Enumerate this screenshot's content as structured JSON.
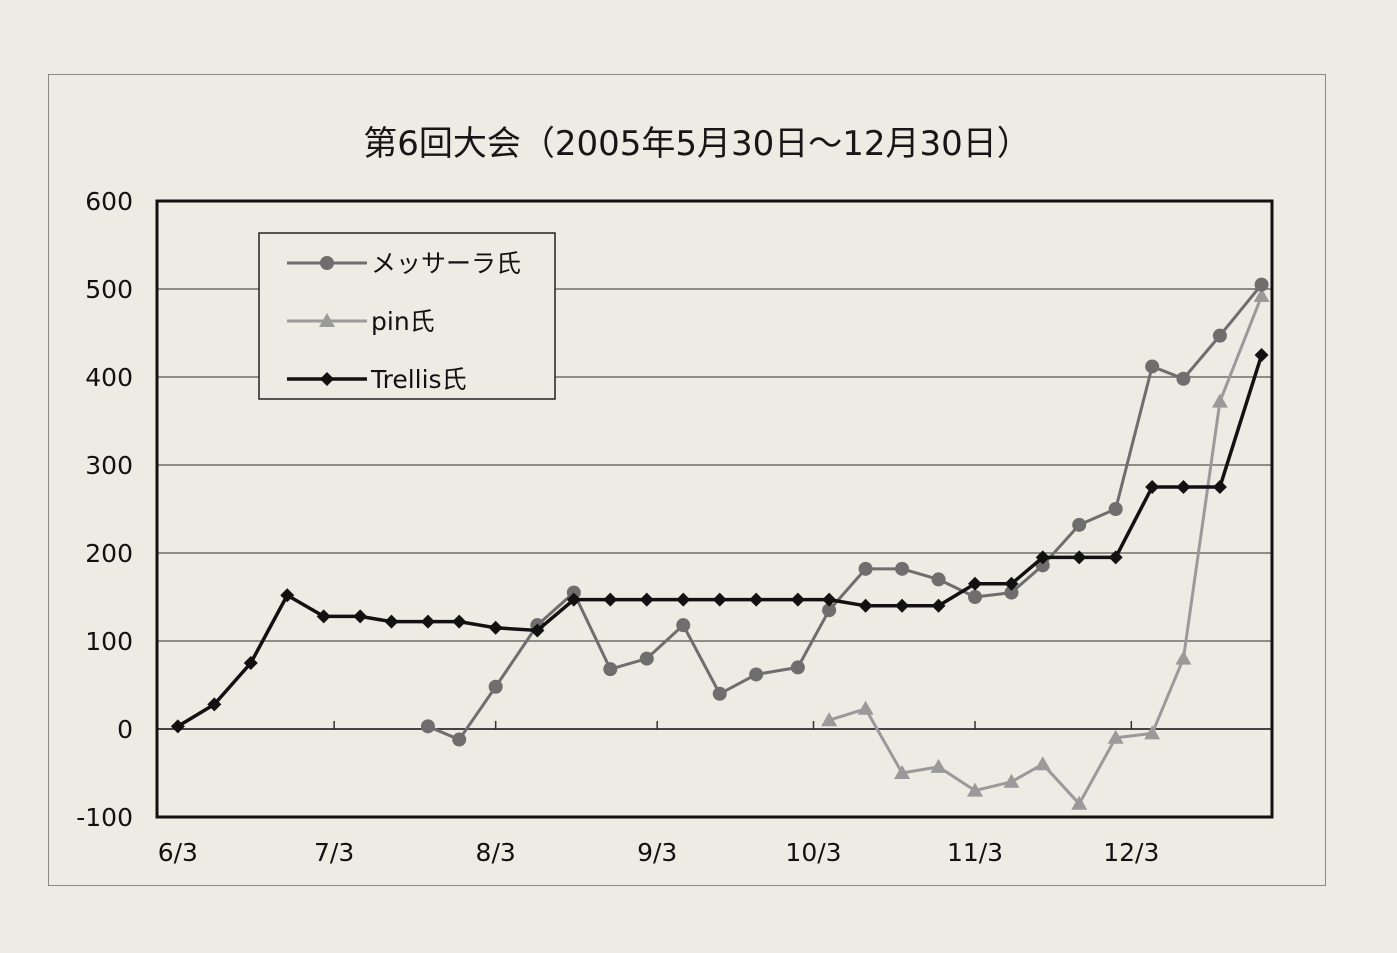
{
  "chart_data": {
    "type": "line",
    "title": "第6回大会（2005年5月30日～12月30日）",
    "xlabel": "",
    "ylabel": "",
    "ylim": [
      -100,
      600
    ],
    "yticks": [
      600,
      500,
      400,
      300,
      200,
      100,
      0,
      -100
    ],
    "x_range": [
      "2005-05-30",
      "2005-12-30"
    ],
    "x_ticks": [
      {
        "date": "2005-06-03",
        "label": "6/3"
      },
      {
        "date": "2005-07-03",
        "label": "7/3"
      },
      {
        "date": "2005-08-03",
        "label": "8/3"
      },
      {
        "date": "2005-09-03",
        "label": "9/3"
      },
      {
        "date": "2005-10-03",
        "label": "10/3"
      },
      {
        "date": "2005-11-03",
        "label": "11/3"
      },
      {
        "date": "2005-12-03",
        "label": "12/3"
      }
    ],
    "grid": {
      "horizontal": true,
      "vertical": false
    },
    "legend_position": "top-left",
    "series": [
      {
        "name": "メッサーラ氏",
        "marker": "circle",
        "color": "#6e6e6e",
        "points": [
          [
            "2005-07-21",
            3
          ],
          [
            "2005-07-27",
            -12
          ],
          [
            "2005-08-03",
            48
          ],
          [
            "2005-08-11",
            118
          ],
          [
            "2005-08-18",
            155
          ],
          [
            "2005-08-25",
            68
          ],
          [
            "2005-09-01",
            80
          ],
          [
            "2005-09-08",
            118
          ],
          [
            "2005-09-15",
            40
          ],
          [
            "2005-09-22",
            62
          ],
          [
            "2005-09-30",
            70
          ],
          [
            "2005-10-06",
            135
          ],
          [
            "2005-10-13",
            182
          ],
          [
            "2005-10-20",
            182
          ],
          [
            "2005-10-27",
            170
          ],
          [
            "2005-11-03",
            150
          ],
          [
            "2005-11-10",
            155
          ],
          [
            "2005-11-16",
            186
          ],
          [
            "2005-11-23",
            232
          ],
          [
            "2005-11-30",
            250
          ],
          [
            "2005-12-07",
            412
          ],
          [
            "2005-12-13",
            398
          ],
          [
            "2005-12-20",
            447
          ],
          [
            "2005-12-28",
            505
          ]
        ]
      },
      {
        "name": "pin氏",
        "marker": "triangle",
        "color": "#9a9a9a",
        "points": [
          [
            "2005-10-06",
            10
          ],
          [
            "2005-10-13",
            23
          ],
          [
            "2005-10-20",
            -50
          ],
          [
            "2005-10-27",
            -43
          ],
          [
            "2005-11-03",
            -70
          ],
          [
            "2005-11-10",
            -60
          ],
          [
            "2005-11-16",
            -40
          ],
          [
            "2005-11-23",
            -85
          ],
          [
            "2005-11-30",
            -10
          ],
          [
            "2005-12-07",
            -5
          ],
          [
            "2005-12-13",
            80
          ],
          [
            "2005-12-20",
            372
          ],
          [
            "2005-12-28",
            492
          ]
        ]
      },
      {
        "name": "Trellis氏",
        "marker": "diamond",
        "color": "#111111",
        "points": [
          [
            "2005-06-03",
            3
          ],
          [
            "2005-06-10",
            28
          ],
          [
            "2005-06-17",
            75
          ],
          [
            "2005-06-24",
            152
          ],
          [
            "2005-07-01",
            128
          ],
          [
            "2005-07-08",
            128
          ],
          [
            "2005-07-14",
            122
          ],
          [
            "2005-07-21",
            122
          ],
          [
            "2005-07-27",
            122
          ],
          [
            "2005-08-03",
            115
          ],
          [
            "2005-08-11",
            112
          ],
          [
            "2005-08-18",
            147
          ],
          [
            "2005-08-25",
            147
          ],
          [
            "2005-09-01",
            147
          ],
          [
            "2005-09-08",
            147
          ],
          [
            "2005-09-15",
            147
          ],
          [
            "2005-09-22",
            147
          ],
          [
            "2005-09-30",
            147
          ],
          [
            "2005-10-06",
            147
          ],
          [
            "2005-10-13",
            140
          ],
          [
            "2005-10-20",
            140
          ],
          [
            "2005-10-27",
            140
          ],
          [
            "2005-11-03",
            165
          ],
          [
            "2005-11-10",
            165
          ],
          [
            "2005-11-16",
            195
          ],
          [
            "2005-11-23",
            195
          ],
          [
            "2005-11-30",
            195
          ],
          [
            "2005-12-07",
            275
          ],
          [
            "2005-12-13",
            275
          ],
          [
            "2005-12-20",
            275
          ],
          [
            "2005-12-28",
            425
          ]
        ]
      }
    ]
  }
}
